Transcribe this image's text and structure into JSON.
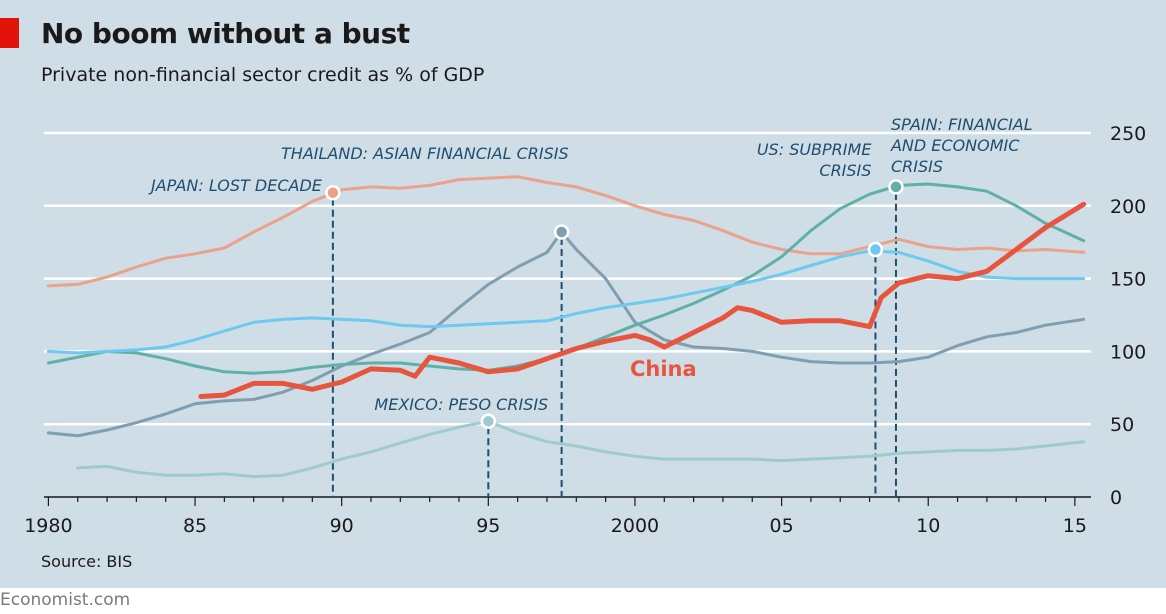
{
  "header": {
    "title": "No boom without a bust",
    "subtitle": "Private non-financial sector credit as % of GDP"
  },
  "footer": {
    "source": "Source: BIS",
    "brand": "Economist.com"
  },
  "colors": {
    "background": "#cfdde6",
    "japan": "#eba28a",
    "thailand": "#7f9fb1",
    "spain": "#5fb0a9",
    "us": "#6ccaf0",
    "mexico": "#9dccce",
    "china": "#e8553e",
    "marker_line": "#1f4e6e",
    "grid": "#ffffff"
  },
  "chart_data": {
    "type": "line",
    "title": "No boom without a bust",
    "subtitle": "Private non-financial sector credit as % of GDP",
    "ylabel": "",
    "xlabel": "",
    "xlim": [
      1980,
      2015.5
    ],
    "ylim": [
      0,
      250
    ],
    "x_ticks": [
      1980,
      1985,
      1990,
      1995,
      2000,
      2005,
      2010,
      2015
    ],
    "x_tick_labels": [
      "1980",
      "85",
      "90",
      "95",
      "2000",
      "05",
      "10",
      "15"
    ],
    "y_ticks": [
      0,
      50,
      100,
      150,
      200,
      250
    ],
    "y_tick_labels": [
      "0",
      "50",
      "100",
      "150",
      "200",
      "250"
    ],
    "y_axis_side": "right",
    "grid": true,
    "legend": "none",
    "series": [
      {
        "key": "japan",
        "name": "",
        "x": [
          1980,
          1981,
          1982,
          1983,
          1984,
          1985,
          1986,
          1987,
          1988,
          1989,
          1990,
          1991,
          1992,
          1993,
          1994,
          1995,
          1996,
          1997,
          1998,
          1999,
          2000,
          2001,
          2002,
          2003,
          2004,
          2005,
          2006,
          2007,
          2008,
          2009,
          2010,
          2011,
          2012,
          2013,
          2014,
          2015.3
        ],
        "y": [
          145,
          146,
          151,
          158,
          164,
          167,
          171,
          182,
          192,
          203,
          211,
          213,
          212,
          214,
          218,
          219,
          220,
          216,
          213,
          207,
          200,
          194,
          190,
          183,
          175,
          170,
          167,
          167,
          172,
          177,
          172,
          170,
          171,
          169,
          170,
          168
        ]
      },
      {
        "key": "thailand",
        "name": "",
        "x": [
          1980,
          1981,
          1982,
          1983,
          1984,
          1985,
          1986,
          1987,
          1988,
          1989,
          1990,
          1991,
          1992,
          1993,
          1994,
          1995,
          1996,
          1997,
          1997.5,
          1998,
          1999,
          2000,
          2001,
          2002,
          2003,
          2004,
          2005,
          2006,
          2007,
          2008,
          2009,
          2010,
          2011,
          2012,
          2013,
          2014,
          2015.3
        ],
        "y": [
          44,
          42,
          46,
          51,
          57,
          64,
          66,
          67,
          72,
          80,
          90,
          98,
          105,
          113,
          130,
          146,
          158,
          168,
          182,
          170,
          150,
          120,
          108,
          103,
          102,
          100,
          96,
          93,
          92,
          92,
          93,
          96,
          104,
          110,
          113,
          118,
          122
        ]
      },
      {
        "key": "spain",
        "name": "",
        "x": [
          1980,
          1981,
          1982,
          1983,
          1984,
          1985,
          1986,
          1987,
          1988,
          1989,
          1990,
          1991,
          1992,
          1993,
          1994,
          1995,
          1996,
          1997,
          1998,
          1999,
          2000,
          2001,
          2002,
          2003,
          2004,
          2005,
          2006,
          2007,
          2008,
          2009,
          2010,
          2011,
          2012,
          2013,
          2014,
          2015.3
        ],
        "y": [
          92,
          96,
          100,
          99,
          95,
          90,
          86,
          85,
          86,
          89,
          91,
          92,
          92,
          90,
          88,
          87,
          90,
          95,
          102,
          110,
          118,
          125,
          133,
          142,
          152,
          165,
          183,
          198,
          208,
          214,
          215,
          213,
          210,
          200,
          188,
          176
        ]
      },
      {
        "key": "us",
        "name": "",
        "x": [
          1980,
          1981,
          1982,
          1983,
          1984,
          1985,
          1986,
          1987,
          1988,
          1989,
          1990,
          1991,
          1992,
          1993,
          1994,
          1995,
          1996,
          1997,
          1998,
          1999,
          2000,
          2001,
          2002,
          2003,
          2004,
          2005,
          2006,
          2007,
          2008,
          2009,
          2010,
          2011,
          2012,
          2013,
          2014,
          2015.3
        ],
        "y": [
          100,
          99,
          100,
          101,
          103,
          108,
          114,
          120,
          122,
          123,
          122,
          121,
          118,
          117,
          118,
          119,
          120,
          121,
          126,
          130,
          133,
          136,
          140,
          144,
          148,
          153,
          159,
          165,
          169,
          168,
          162,
          155,
          151,
          150,
          150,
          150
        ]
      },
      {
        "key": "mexico",
        "name": "",
        "x": [
          1981,
          1982,
          1983,
          1984,
          1985,
          1986,
          1987,
          1988,
          1989,
          1990,
          1991,
          1992,
          1993,
          1994,
          1995,
          1996,
          1997,
          1998,
          1999,
          2000,
          2001,
          2002,
          2003,
          2004,
          2005,
          2006,
          2007,
          2008,
          2009,
          2010,
          2011,
          2012,
          2013,
          2014,
          2015.3
        ],
        "y": [
          20,
          21,
          17,
          15,
          15,
          16,
          14,
          15,
          20,
          26,
          31,
          37,
          43,
          48,
          52,
          44,
          38,
          35,
          31,
          28,
          26,
          26,
          26,
          26,
          25,
          26,
          27,
          28,
          30,
          31,
          32,
          32,
          33,
          35,
          38
        ]
      },
      {
        "key": "china",
        "name": "China",
        "x": [
          1985.2,
          1986,
          1987,
          1988,
          1989,
          1990,
          1991,
          1992,
          1992.5,
          1993,
          1994,
          1995,
          1996,
          1997,
          1998,
          1999,
          2000,
          2000.5,
          2001,
          2002,
          2003,
          2003.5,
          2004,
          2005,
          2006,
          2007,
          2008,
          2008.4,
          2009,
          2010,
          2011,
          2012,
          2013,
          2014,
          2015.3
        ],
        "y": [
          69,
          70,
          78,
          78,
          74,
          79,
          88,
          87,
          83,
          96,
          92,
          86,
          88,
          95,
          102,
          107,
          111,
          108,
          103,
          113,
          123,
          130,
          128,
          120,
          121,
          121,
          117,
          137,
          147,
          152,
          150,
          155,
          170,
          185,
          201
        ]
      }
    ],
    "annotations": [
      {
        "key": "japan",
        "year": 1989.7,
        "value": 209,
        "label_lines": [
          "JAPAN: LOST DECADE"
        ]
      },
      {
        "key": "thailand",
        "year": 1997.5,
        "value": 182,
        "label_lines": [
          "THAILAND: ASIAN FINANCIAL CRISIS"
        ]
      },
      {
        "key": "us",
        "year": 2008.2,
        "value": 170,
        "label_lines": [
          "US: SUBPRIME",
          "CRISIS"
        ]
      },
      {
        "key": "spain",
        "year": 2008.9,
        "value": 213,
        "label_lines": [
          "SPAIN: FINANCIAL",
          "AND ECONOMIC",
          "CRISIS"
        ]
      },
      {
        "key": "mexico",
        "year": 1995,
        "value": 52,
        "label_lines": [
          "MEXICO: PESO CRISIS"
        ]
      }
    ],
    "series_label": {
      "key": "china",
      "text": "China"
    }
  }
}
